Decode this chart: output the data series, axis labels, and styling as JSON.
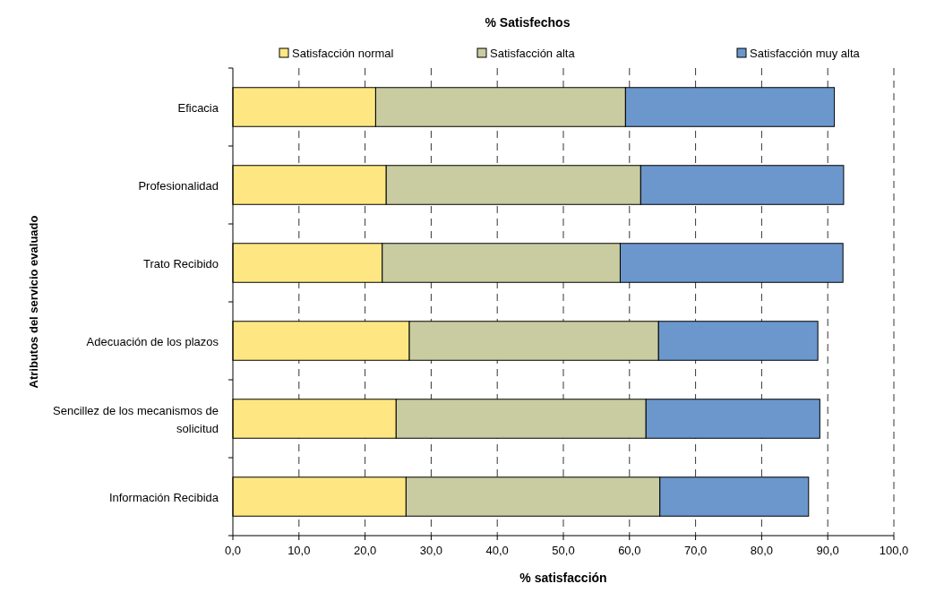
{
  "chart_data": {
    "type": "bar",
    "orientation": "horizontal",
    "stacked": true,
    "title": "% Satisfechos",
    "xlabel": "% satisfacción",
    "ylabel": "Atributos del servicio evaluado",
    "categories": [
      "Eficacia",
      "Profesionalidad",
      "Trato Recibido",
      "Adecuación de los plazos",
      "Sencillez de los mecanismos de solicitud",
      "Información Recibida"
    ],
    "series": [
      {
        "name": "Satisfacción normal",
        "color": "#fee783",
        "values": [
          21.6,
          23.2,
          22.6,
          26.7,
          24.7,
          26.2
        ]
      },
      {
        "name": "Satisfacción alta",
        "color": "#c9cca0",
        "values": [
          37.8,
          38.5,
          36.0,
          37.7,
          37.8,
          38.4
        ]
      },
      {
        "name": "Satisfacción muy alta",
        "color": "#6b97cc",
        "values": [
          31.6,
          30.7,
          33.7,
          24.1,
          26.3,
          22.5
        ]
      }
    ],
    "xlim": [
      0,
      100
    ],
    "xticks": [
      {
        "value": 0,
        "label": "0,0"
      },
      {
        "value": 10,
        "label": "10,0"
      },
      {
        "value": 20,
        "label": "20,0"
      },
      {
        "value": 30,
        "label": "30,0"
      },
      {
        "value": 40,
        "label": "40,0"
      },
      {
        "value": 50,
        "label": "50,0"
      },
      {
        "value": 60,
        "label": "60,0"
      },
      {
        "value": 70,
        "label": "70,0"
      },
      {
        "value": 80,
        "label": "80,0"
      },
      {
        "value": 90,
        "label": "90,0"
      },
      {
        "value": 100,
        "label": "100,0"
      }
    ],
    "grid": "x",
    "legend": "top"
  }
}
